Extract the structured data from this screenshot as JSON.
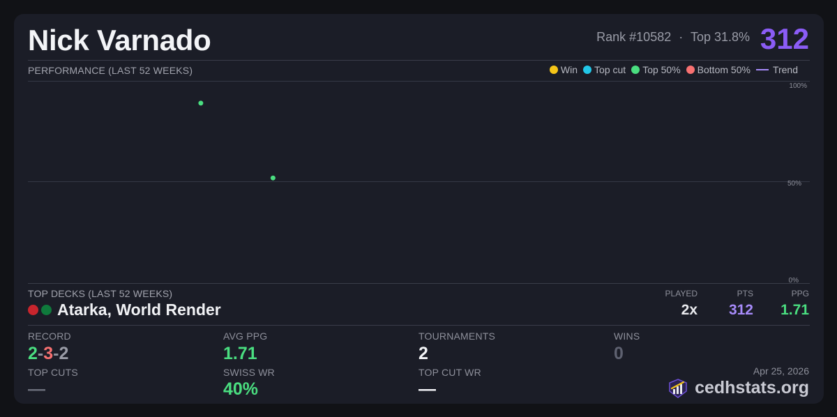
{
  "player": {
    "name": "Nick Varnado",
    "rank_text": "Rank #10582",
    "separator": "·",
    "top_percent_text": "Top 31.8%",
    "score": "312"
  },
  "performance": {
    "title": "PERFORMANCE (LAST 52 WEEKS)",
    "legend": [
      {
        "label": "Win",
        "color": "#f5c518",
        "kind": "dot"
      },
      {
        "label": "Top cut",
        "color": "#22c7e8",
        "kind": "dot"
      },
      {
        "label": "Top 50%",
        "color": "#4ade80",
        "kind": "dot"
      },
      {
        "label": "Bottom 50%",
        "color": "#f87171",
        "kind": "dot"
      },
      {
        "label": "Trend",
        "color": "#a78bfa",
        "kind": "line"
      }
    ]
  },
  "chart_data": {
    "type": "scatter",
    "title": "PERFORMANCE (LAST 52 WEEKS)",
    "y_ticks": [
      "100%",
      "50%",
      "0%"
    ],
    "ylim": [
      0,
      100
    ],
    "xlim": [
      0,
      52
    ],
    "grid": true,
    "legend_placement": "top-right",
    "series": [
      {
        "name": "Top 50%",
        "color": "#4ade80",
        "points": [
          {
            "x": 11.5,
            "y": 89
          },
          {
            "x": 16.3,
            "y": 52
          }
        ]
      }
    ]
  },
  "top_decks": {
    "title": "TOP DECKS (LAST 52 WEEKS)",
    "headers": {
      "played": "PLAYED",
      "pts": "PTS",
      "ppg": "PPG"
    },
    "deck": {
      "name": "Atarka, World Render",
      "colors": [
        "#c8252d",
        "#0f7a3c"
      ],
      "played": "2x",
      "pts": "312",
      "ppg": "1.71"
    }
  },
  "stats": {
    "record_label": "RECORD",
    "record": {
      "wins": "2",
      "losses": "3",
      "draws": "2",
      "sep": "-"
    },
    "avg_ppg_label": "AVG PPG",
    "avg_ppg": "1.71",
    "tournaments_label": "TOURNAMENTS",
    "tournaments": "2",
    "wins_label": "WINS",
    "wins": "0",
    "top_cuts_label": "TOP CUTS",
    "top_cuts": "—",
    "swiss_wr_label": "SWISS WR",
    "swiss_wr": "40%",
    "top_cut_wr_label": "TOP CUT WR",
    "top_cut_wr": "—"
  },
  "footer": {
    "date": "Apr 25, 2026",
    "brand": "cedhstats.org",
    "brand_icon": "bar-chart-logo-icon"
  },
  "colors": {
    "accent_purple": "#8b5cf6",
    "pts_purple": "#a78bfa",
    "green": "#4ade80",
    "red": "#f87171",
    "muted": "#8e909b"
  }
}
